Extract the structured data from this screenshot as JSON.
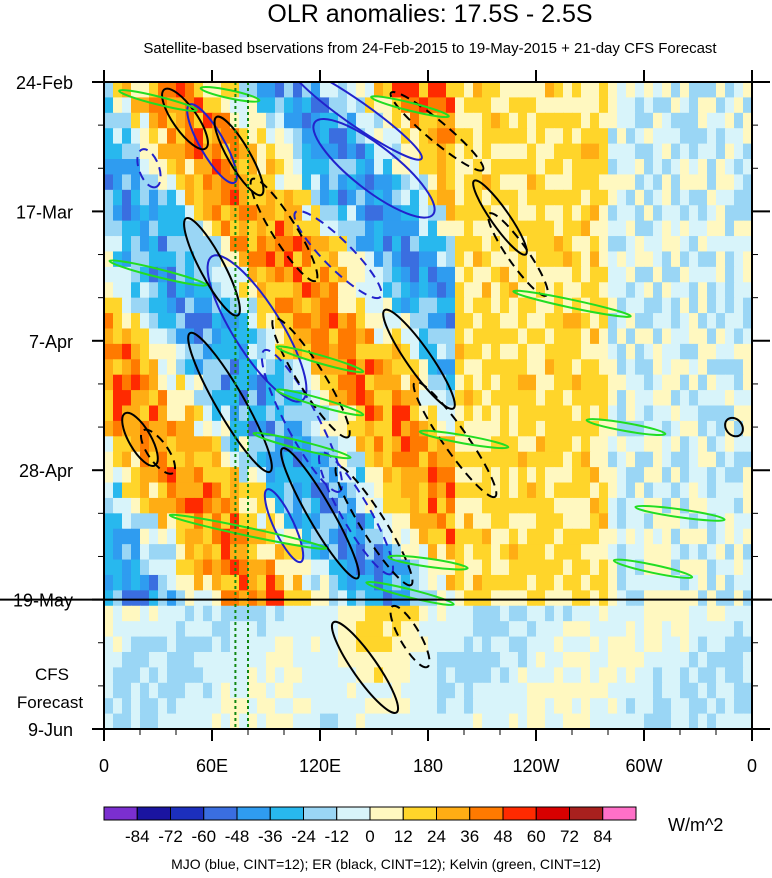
{
  "chart_data": {
    "type": "heatmap",
    "title": "OLR anomalies: 17.5S - 2.5S",
    "subtitle": "Satellite-based bservations from 24-Feb-2015 to 19-May-2015 + 21-day CFS Forecast",
    "x_ticks": [
      {
        "lon": 0,
        "label": "0"
      },
      {
        "lon": 60,
        "label": "60E"
      },
      {
        "lon": 120,
        "label": "120E"
      },
      {
        "lon": 180,
        "label": "180"
      },
      {
        "lon": 240,
        "label": "120W"
      },
      {
        "lon": 300,
        "label": "60W"
      },
      {
        "lon": 360,
        "label": "0"
      }
    ],
    "xlim": [
      0,
      360
    ],
    "y_ticks": [
      {
        "day": 0,
        "label": "24-Feb"
      },
      {
        "day": 21,
        "label": "17-Mar"
      },
      {
        "day": 42,
        "label": "7-Apr"
      },
      {
        "day": 63,
        "label": "28-Apr"
      },
      {
        "day": 84,
        "label": "19-May"
      },
      {
        "day": 105,
        "label": "9-Jun"
      }
    ],
    "ylim": [
      0,
      105
    ],
    "forecast_start_day": 84,
    "forecast_label_line1": "CFS",
    "forecast_label_line2": "Forecast",
    "colorbar": {
      "levels": [
        "-84",
        "-72",
        "-60",
        "-48",
        "-36",
        "-24",
        "-12",
        "0",
        "12",
        "24",
        "36",
        "48",
        "60",
        "72",
        "84"
      ],
      "colors": [
        "#7b2fd0",
        "#1a14a0",
        "#1c2fbd",
        "#3a6ee0",
        "#2f9cf0",
        "#28b8ee",
        "#9ad6f5",
        "#d8f4fa",
        "#fff8c0",
        "#ffd52a",
        "#ffad14",
        "#ff7a00",
        "#ff2a00",
        "#d80000",
        "#a8201e",
        "#ff70c8"
      ],
      "units": "W/m^2"
    },
    "contours": {
      "mjo": {
        "color": "#2222cc",
        "cint": 12
      },
      "er": {
        "color": "#000000",
        "cint": 12
      },
      "kelvin": {
        "color": "#22dd22",
        "cint": 12
      }
    },
    "footer": "MJO (blue, CINT=12); ER (black, CINT=12); Kelvin (green, CINT=12)"
  }
}
